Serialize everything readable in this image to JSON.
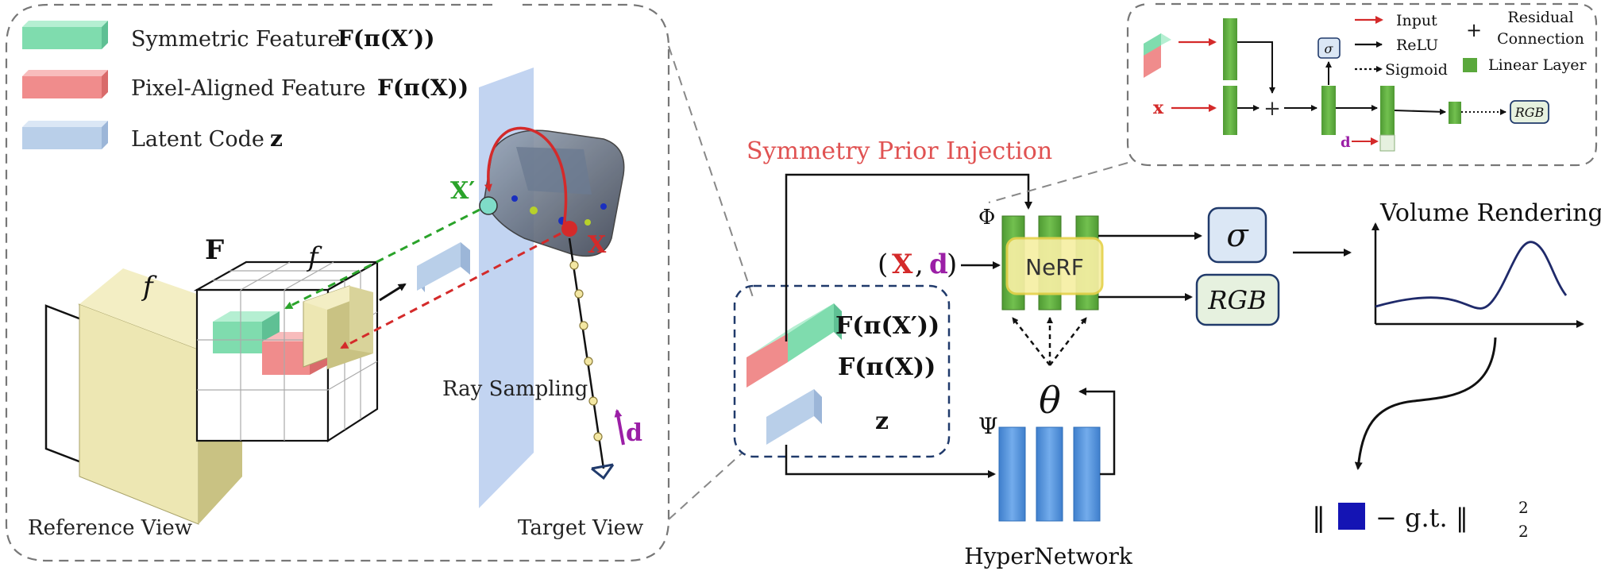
{
  "legend": {
    "symmetric_label": "Symmetric Feature",
    "symmetric_math": "F(π(X′))",
    "pixel_label": "Pixel-Aligned Feature",
    "pixel_math": "F(π(X))",
    "latent_label": "Latent Code",
    "latent_math": "z"
  },
  "left_panel": {
    "feature_volume_label": "F",
    "encoder_label_1": "f",
    "encoder_label_2": "f",
    "symmetric_point_label": "X′",
    "query_point_label": "X",
    "ray_sampling_label": "Ray Sampling",
    "direction_label": "d",
    "reference_view_label": "Reference View",
    "target_view_label": "Target View"
  },
  "center": {
    "symmetry_prior_label": "Symmetry Prior Injection",
    "phi_label": "Φ",
    "psi_label": "Ψ",
    "nerf_label": "NeRF",
    "input_open": "(",
    "input_x": "X",
    "input_comma": ",",
    "input_d": "d",
    "input_close": ")",
    "feat_sym": "F(π(X′))",
    "feat_pix": "F(π(X))",
    "feat_z": "z",
    "theta_label": "θ",
    "hypernetwork_label": "HyperNetwork",
    "sigma_label": "σ",
    "rgb_label": "RGB"
  },
  "right": {
    "volume_rendering_label": "Volume Rendering",
    "loss_left": "‖",
    "loss_right": "− g.t. ‖",
    "loss_sup": "2",
    "loss_sub": "2"
  },
  "inset": {
    "x_label": "x",
    "d_label": "d",
    "sigma_label": "σ",
    "rgb_label": "RGB",
    "plus_label": "+",
    "legend_input": "Input",
    "legend_relu": "ReLU",
    "legend_sigmoid": "Sigmoid",
    "legend_residual_plus": "+",
    "legend_residual_1": "Residual",
    "legend_residual_2": "Connection",
    "legend_linear": "Linear Layer"
  },
  "colors": {
    "symmetric_green": "#7fdcae",
    "pixel_red": "#f08c8c",
    "latent_blue": "#b9cfe9",
    "nerf_green": "#5aa83c",
    "hyper_blue": "#4a8fd8",
    "accent_red": "#d42a2a",
    "accent_purple": "#9b1fa6",
    "accent_green": "#2aa32a",
    "dark_navy": "#203a6b",
    "loss_square": "#1414b4"
  }
}
